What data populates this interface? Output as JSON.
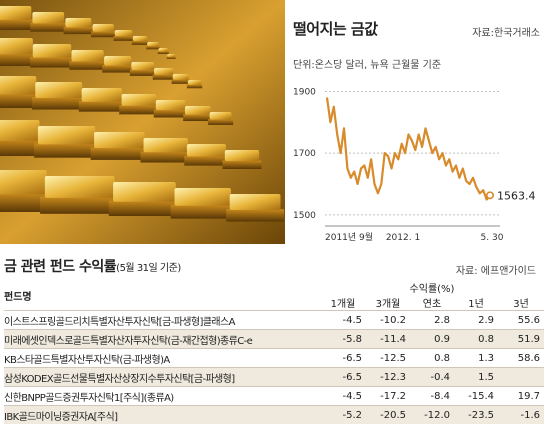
{
  "chart_data": {
    "type": "line",
    "title": "떨어지는 금값",
    "source": "자료:한국거래소",
    "unit_label": "단위:온스당 달러, 뉴욕 근월물 기준",
    "yticks": [
      1500,
      1700,
      1900
    ],
    "ylim": [
      1490,
      1930
    ],
    "x_labels": [
      "2011년 9월",
      "2012. 1",
      "5. 30"
    ],
    "end_label": "1563.4",
    "series": [
      {
        "values": [
          1880,
          1800,
          1850,
          1760,
          1700,
          1780,
          1650,
          1620,
          1640,
          1600,
          1650,
          1660,
          1620,
          1680,
          1600,
          1570,
          1600,
          1700,
          1690,
          1650,
          1700,
          1680,
          1730,
          1700,
          1760,
          1740,
          1710,
          1760,
          1720,
          1780,
          1740,
          1700,
          1720,
          1680,
          1700,
          1660,
          1680,
          1640,
          1660,
          1620,
          1650,
          1610,
          1600,
          1620,
          1590,
          1570,
          1580,
          1550,
          1563.4
        ]
      }
    ]
  },
  "table": {
    "title": "금 관련 펀드 수익률",
    "date_note": "(5월 31일 기준)",
    "source": "자료: 에프앤가이드",
    "col_fund": "펀드명",
    "col_group": "수익률(%)",
    "periods": [
      "1개월",
      "3개월",
      "연초",
      "1년",
      "3년"
    ],
    "rows": [
      {
        "name": "이스트스프링골드리치특별자산투자신탁[금-파생형]클래스A",
        "vals": [
          "-4.5",
          "-10.2",
          "2.8",
          "2.9",
          "55.6"
        ]
      },
      {
        "name": "미래에셋인덱스로골드특별자산자투자신탁(금-재간접형)종류C-e",
        "vals": [
          "-5.8",
          "-11.4",
          "0.9",
          "0.8",
          "51.9"
        ]
      },
      {
        "name": "KB스타골드특별자산투자신탁(금-파생형)A",
        "vals": [
          "-6.5",
          "-12.5",
          "0.8",
          "1.3",
          "58.6"
        ]
      },
      {
        "name": "삼성KODEX골드선물특별자산상장지수투자신탁[금-파생형]",
        "vals": [
          "-6.5",
          "-12.3",
          "-0.4",
          "1.5",
          ""
        ]
      },
      {
        "name": "신한BNPP골드증권투자신탁1[주식](종류A)",
        "vals": [
          "-4.5",
          "-17.2",
          "-8.4",
          "-15.4",
          "19.7"
        ]
      },
      {
        "name": "IBK골드마이닝증권자A[주식]",
        "vals": [
          "-5.2",
          "-20.5",
          "-12.0",
          "-23.5",
          "-1.6"
        ]
      }
    ]
  }
}
